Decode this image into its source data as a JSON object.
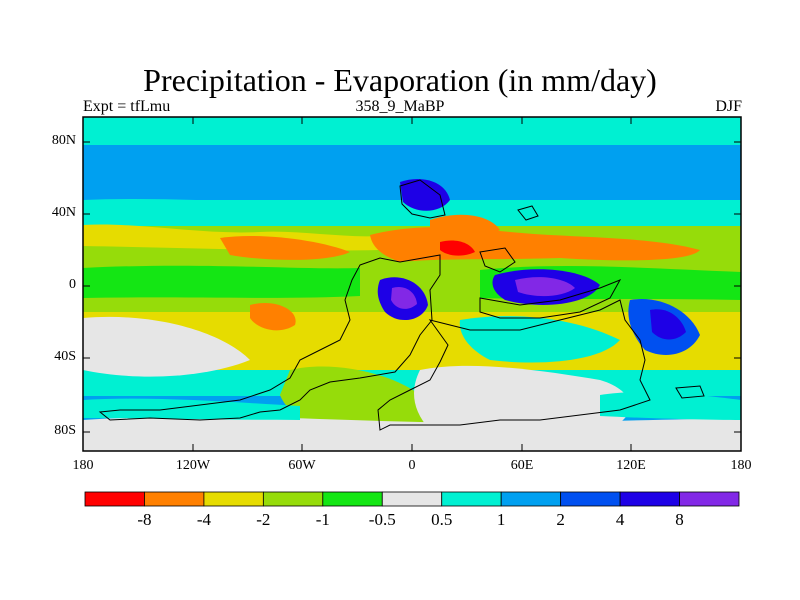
{
  "header": {
    "title": "Precipitation - Evaporation (in mm/day)",
    "experiment": "Expt = tfLmu",
    "run_label": "358_9_MaBP",
    "season": "DJF"
  },
  "axes": {
    "lat_ticks": [
      "80N",
      "40N",
      "0",
      "40S",
      "80S"
    ],
    "lon_ticks": [
      "180",
      "120W",
      "60W",
      "0",
      "60E",
      "120E",
      "180"
    ]
  },
  "colorbar": {
    "colors": [
      "#ff0000",
      "#ff8000",
      "#e6dc00",
      "#96dc0a",
      "#14e614",
      "#e6e6e6",
      "#00f0d2",
      "#00a0f0",
      "#0050f0",
      "#1e00e6",
      "#8228e6"
    ],
    "labels": [
      "-8",
      "-4",
      "-2",
      "-1",
      "-0.5",
      "0.5",
      "1",
      "2",
      "4",
      "8"
    ]
  }
}
